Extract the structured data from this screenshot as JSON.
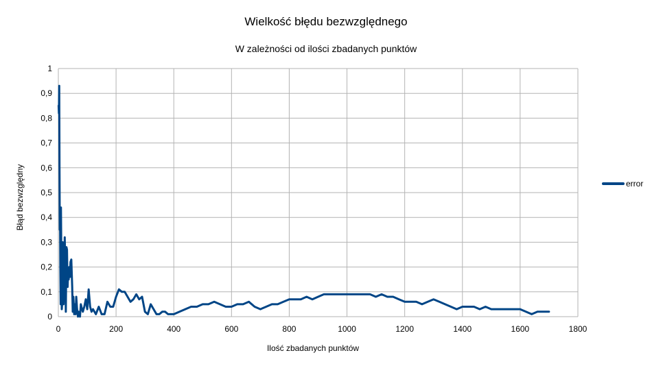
{
  "chart_data": {
    "type": "line",
    "title": "Wielkość błędu bezwzględnego",
    "subtitle": "W zależności od ilości zbadanych punktów",
    "xlabel": "Ilość zbadanych punktów",
    "ylabel": "Błąd bezwzględny",
    "xlim": [
      0,
      1800
    ],
    "ylim": [
      0,
      1
    ],
    "x_ticks": [
      0,
      200,
      400,
      600,
      800,
      1000,
      1200,
      1400,
      1600,
      1800
    ],
    "x_tick_labels": [
      "0",
      "200",
      "400",
      "600",
      "800",
      "1000",
      "1200",
      "1400",
      "1600",
      "1800"
    ],
    "y_ticks": [
      0,
      0.1,
      0.2,
      0.3,
      0.4,
      0.5,
      0.6,
      0.7,
      0.8,
      0.9,
      1
    ],
    "y_tick_labels": [
      "0",
      "0,1",
      "0,2",
      "0,3",
      "0,4",
      "0,5",
      "0,6",
      "0,7",
      "0,8",
      "0,9",
      "1"
    ],
    "grid": true,
    "legend_position": "right",
    "series": [
      {
        "name": "error",
        "color": "#004586",
        "x": [
          1,
          2,
          3,
          4,
          5,
          6,
          7,
          8,
          9,
          10,
          11,
          12,
          13,
          14,
          15,
          16,
          18,
          20,
          22,
          24,
          26,
          28,
          30,
          32,
          34,
          36,
          38,
          40,
          42,
          45,
          48,
          50,
          52,
          55,
          58,
          60,
          62,
          65,
          68,
          70,
          72,
          75,
          78,
          80,
          85,
          90,
          95,
          100,
          105,
          110,
          115,
          120,
          130,
          140,
          150,
          160,
          170,
          180,
          190,
          200,
          210,
          220,
          230,
          240,
          250,
          260,
          270,
          280,
          290,
          300,
          310,
          320,
          330,
          340,
          350,
          360,
          370,
          380,
          390,
          400,
          420,
          440,
          460,
          480,
          500,
          520,
          540,
          560,
          580,
          600,
          620,
          640,
          660,
          680,
          700,
          720,
          740,
          760,
          780,
          800,
          820,
          840,
          860,
          880,
          900,
          920,
          940,
          960,
          980,
          1000,
          1020,
          1040,
          1060,
          1080,
          1100,
          1120,
          1140,
          1160,
          1180,
          1200,
          1220,
          1240,
          1260,
          1280,
          1300,
          1320,
          1340,
          1360,
          1380,
          1400,
          1420,
          1440,
          1460,
          1480,
          1500,
          1520,
          1540,
          1560,
          1580,
          1600,
          1620,
          1640,
          1660,
          1680,
          1700
        ],
        "y": [
          0.85,
          0.82,
          0.93,
          0.6,
          0.35,
          0.44,
          0.2,
          0.05,
          0.44,
          0.3,
          0.1,
          0.03,
          0.05,
          0.15,
          0.3,
          0.07,
          0.05,
          0.12,
          0.32,
          0.22,
          0.02,
          0.28,
          0.27,
          0.12,
          0.18,
          0.15,
          0.2,
          0.16,
          0.22,
          0.23,
          0.12,
          0.02,
          0.08,
          0.01,
          0.05,
          0.01,
          0.08,
          0.03,
          0.0,
          0.02,
          0.01,
          0.0,
          0.05,
          0.04,
          0.02,
          0.04,
          0.07,
          0.03,
          0.11,
          0.04,
          0.02,
          0.03,
          0.01,
          0.04,
          0.01,
          0.01,
          0.06,
          0.04,
          0.04,
          0.08,
          0.11,
          0.1,
          0.1,
          0.08,
          0.06,
          0.07,
          0.09,
          0.07,
          0.08,
          0.02,
          0.01,
          0.05,
          0.03,
          0.01,
          0.01,
          0.02,
          0.02,
          0.01,
          0.01,
          0.01,
          0.02,
          0.03,
          0.04,
          0.04,
          0.05,
          0.05,
          0.06,
          0.05,
          0.04,
          0.04,
          0.05,
          0.05,
          0.06,
          0.04,
          0.03,
          0.04,
          0.05,
          0.05,
          0.06,
          0.07,
          0.07,
          0.07,
          0.08,
          0.07,
          0.08,
          0.09,
          0.09,
          0.09,
          0.09,
          0.09,
          0.09,
          0.09,
          0.09,
          0.09,
          0.08,
          0.09,
          0.08,
          0.08,
          0.07,
          0.06,
          0.06,
          0.06,
          0.05,
          0.06,
          0.07,
          0.06,
          0.05,
          0.04,
          0.03,
          0.04,
          0.04,
          0.04,
          0.03,
          0.04,
          0.03,
          0.03,
          0.03,
          0.03,
          0.03,
          0.03,
          0.02,
          0.01,
          0.02,
          0.02,
          0.02
        ]
      }
    ]
  }
}
